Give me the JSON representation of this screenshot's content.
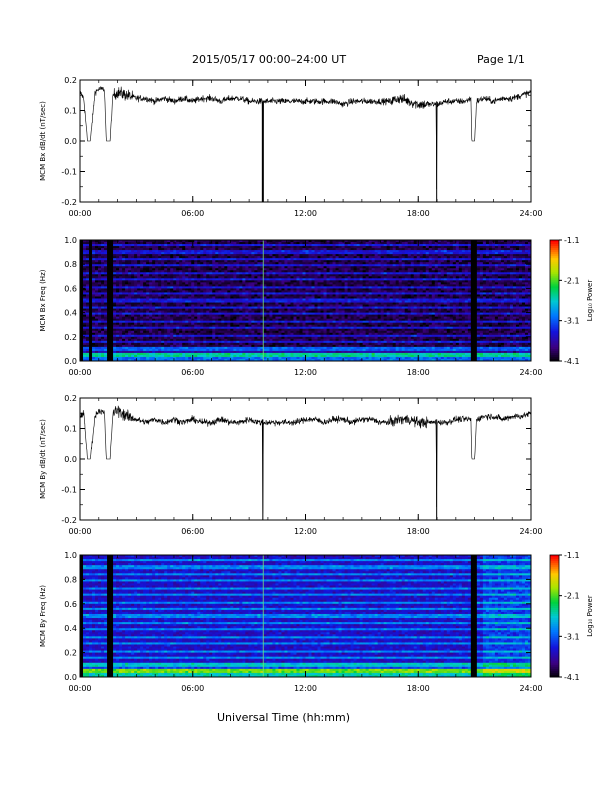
{
  "header": {
    "title": "2015/05/17   00:00–24:00 UT",
    "page": "Page 1/1"
  },
  "chart_data": [
    {
      "type": "line",
      "ylabel": "MCM Bx dB/dt (nT/sec)",
      "xlim": [
        0,
        24
      ],
      "ylim": [
        -0.2,
        0.2
      ],
      "x_tick_labels": [
        "00:00",
        "06:00",
        "12:00",
        "18:00",
        "24:00"
      ],
      "y_tick_labels": [
        "0.2",
        "0.1",
        "0.0",
        "-0.1",
        "-0.2"
      ],
      "series": [
        {
          "x": [
            0.0,
            0.2,
            0.4,
            0.55,
            0.8,
            1.0,
            1.3,
            1.4,
            1.6,
            1.75,
            2.0,
            2.5,
            3.0,
            3.5,
            4.0,
            4.5,
            5.0,
            5.5,
            6.0,
            6.5,
            7.0,
            7.5,
            8.0,
            8.5,
            9.0,
            9.5,
            9.7,
            9.73,
            9.76,
            10.0,
            10.5,
            11.0,
            11.5,
            12.0,
            12.5,
            13.0,
            13.5,
            14.0,
            14.5,
            15.0,
            15.5,
            16.0,
            16.5,
            17.0,
            17.5,
            18.0,
            18.5,
            18.95,
            18.98,
            19.0,
            19.5,
            20.0,
            20.5,
            20.8,
            20.85,
            21.0,
            21.1,
            21.5,
            22.0,
            22.5,
            23.0,
            23.5,
            24.0
          ],
          "y": [
            0.16,
            0.14,
            0.0,
            0.0,
            0.16,
            0.17,
            0.17,
            0.0,
            0.0,
            0.15,
            0.16,
            0.15,
            0.14,
            0.14,
            0.13,
            0.14,
            0.13,
            0.14,
            0.13,
            0.14,
            0.14,
            0.13,
            0.14,
            0.14,
            0.13,
            0.13,
            0.13,
            -0.2,
            0.13,
            0.13,
            0.13,
            0.13,
            0.13,
            0.13,
            0.13,
            0.13,
            0.13,
            0.12,
            0.13,
            0.13,
            0.13,
            0.13,
            0.13,
            0.14,
            0.13,
            0.12,
            0.12,
            0.12,
            -0.2,
            0.12,
            0.13,
            0.13,
            0.13,
            0.14,
            0.0,
            0.0,
            0.13,
            0.14,
            0.13,
            0.14,
            0.14,
            0.15,
            0.16
          ]
        }
      ]
    },
    {
      "type": "heatmap",
      "ylabel": "MCM Bx Freq (Hz)",
      "xlim": [
        0,
        24
      ],
      "ylim": [
        0,
        1
      ],
      "x_tick_labels": [
        "00:00",
        "06:00",
        "12:00",
        "18:00",
        "24:00"
      ],
      "y_tick_labels": [
        "1.0",
        "0.8",
        "0.6",
        "0.4",
        "0.2",
        "0.0"
      ],
      "colorbar": {
        "label": "Log₁₀ Power",
        "ticks": [
          "-1.1",
          "-2.1",
          "-3.1",
          "-4.1"
        ],
        "range": [
          -4.1,
          -1.1
        ]
      },
      "base_level": -3.9,
      "gaps_hours": [
        [
          0.0,
          0.15
        ],
        [
          0.45,
          0.7
        ],
        [
          1.4,
          1.75
        ],
        [
          20.85,
          21.1
        ]
      ],
      "harmonic_lines_hz": [
        0.05,
        0.1,
        0.155,
        0.215,
        0.27,
        0.325,
        0.385,
        0.44,
        0.5,
        0.555,
        0.615,
        0.67,
        0.73,
        0.785,
        0.845,
        0.9,
        0.96
      ]
    },
    {
      "type": "line",
      "ylabel": "MCM By dB/dt (nT/sec)",
      "xlim": [
        0,
        24
      ],
      "ylim": [
        -0.2,
        0.2
      ],
      "x_tick_labels": [
        "00:00",
        "06:00",
        "12:00",
        "18:00",
        "24:00"
      ],
      "y_tick_labels": [
        "0.2",
        "0.1",
        "0.0",
        "-0.1",
        "-0.2"
      ],
      "series": [
        {
          "x": [
            0.0,
            0.2,
            0.4,
            0.55,
            0.8,
            1.0,
            1.3,
            1.4,
            1.6,
            1.75,
            2.0,
            2.5,
            3.0,
            3.5,
            4.0,
            4.5,
            5.0,
            5.5,
            6.0,
            6.5,
            7.0,
            7.5,
            8.0,
            8.5,
            9.0,
            9.5,
            9.7,
            9.73,
            9.76,
            10.0,
            10.5,
            11.0,
            11.5,
            12.0,
            12.5,
            13.0,
            13.5,
            14.0,
            14.5,
            15.0,
            15.5,
            16.0,
            16.5,
            17.0,
            17.5,
            18.0,
            18.5,
            18.95,
            18.98,
            19.0,
            19.5,
            20.0,
            20.5,
            20.8,
            20.85,
            21.0,
            21.1,
            21.5,
            22.0,
            22.5,
            23.0,
            23.5,
            24.0
          ],
          "y": [
            0.14,
            0.15,
            0.0,
            0.0,
            0.14,
            0.16,
            0.15,
            0.0,
            0.0,
            0.15,
            0.16,
            0.14,
            0.13,
            0.12,
            0.13,
            0.12,
            0.13,
            0.12,
            0.13,
            0.12,
            0.12,
            0.13,
            0.12,
            0.12,
            0.13,
            0.12,
            0.12,
            -0.2,
            0.12,
            0.12,
            0.12,
            0.12,
            0.12,
            0.13,
            0.13,
            0.12,
            0.13,
            0.13,
            0.12,
            0.13,
            0.13,
            0.12,
            0.12,
            0.13,
            0.13,
            0.12,
            0.12,
            0.12,
            -0.2,
            0.12,
            0.12,
            0.13,
            0.13,
            0.13,
            0.0,
            0.0,
            0.13,
            0.14,
            0.14,
            0.13,
            0.14,
            0.14,
            0.15
          ]
        }
      ]
    },
    {
      "type": "heatmap",
      "ylabel": "MCM By Freq (Hz)",
      "xlim": [
        0,
        24
      ],
      "ylim": [
        0,
        1
      ],
      "x_tick_labels": [
        "00:00",
        "06:00",
        "12:00",
        "18:00",
        "24:00"
      ],
      "y_tick_labels": [
        "1.0",
        "0.8",
        "0.6",
        "0.4",
        "0.2",
        "0.0"
      ],
      "colorbar": {
        "label": "Log₁₀ Power",
        "ticks": [
          "-1.1",
          "-2.1",
          "-3.1",
          "-4.1"
        ],
        "range": [
          -4.1,
          -1.1
        ]
      },
      "base_level": -3.45,
      "gaps_hours": [
        [
          0.0,
          0.15
        ],
        [
          1.4,
          1.75
        ],
        [
          20.85,
          21.1
        ]
      ],
      "harmonic_lines_hz": [
        0.05,
        0.1,
        0.155,
        0.215,
        0.27,
        0.325,
        0.385,
        0.44,
        0.5,
        0.555,
        0.615,
        0.67,
        0.73,
        0.785,
        0.845,
        0.9,
        0.96
      ]
    }
  ],
  "xaxis_title": "Universal Time (hh:mm)"
}
